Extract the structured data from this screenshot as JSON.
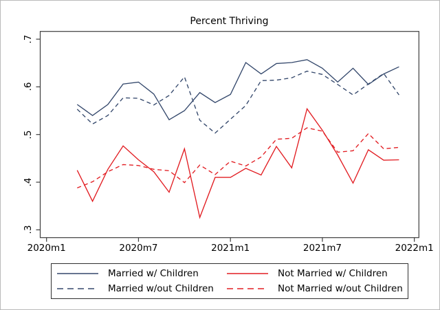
{
  "chart_data": {
    "type": "line",
    "title": "Percent Thriving",
    "x_unit": "month",
    "categories": [
      "2020m3",
      "2020m4",
      "2020m5",
      "2020m6",
      "2020m7",
      "2020m8",
      "2020m9",
      "2020m10",
      "2020m11",
      "2020m12",
      "2021m1",
      "2021m2",
      "2021m3",
      "2021m4",
      "2021m5",
      "2021m6",
      "2021m7",
      "2021m8",
      "2021m9",
      "2021m10",
      "2021m11",
      "2021m12"
    ],
    "series": [
      {
        "name": "Married w/ Children",
        "color": "#33476b",
        "style": "solid",
        "values": [
          0.563,
          0.54,
          0.563,
          0.606,
          0.61,
          0.585,
          0.531,
          0.55,
          0.588,
          0.567,
          0.584,
          0.651,
          0.627,
          0.649,
          0.651,
          0.657,
          0.639,
          0.61,
          0.639,
          0.605,
          0.627,
          0.642
        ]
      },
      {
        "name": "Married w/out Children",
        "color": "#33476b",
        "style": "dashed",
        "values": [
          0.553,
          0.522,
          0.54,
          0.577,
          0.576,
          0.562,
          0.582,
          0.621,
          0.53,
          0.503,
          0.532,
          0.561,
          0.613,
          0.614,
          0.619,
          0.633,
          0.626,
          0.605,
          0.583,
          0.606,
          0.628,
          0.583
        ]
      },
      {
        "name": "Not Married w/ Children",
        "color": "#e21d22",
        "style": "solid",
        "values": [
          0.425,
          0.36,
          0.427,
          0.476,
          0.447,
          0.422,
          0.379,
          0.47,
          0.326,
          0.41,
          0.41,
          0.429,
          0.415,
          0.475,
          0.43,
          0.554,
          0.509,
          0.457,
          0.398,
          0.468,
          0.446,
          0.447
        ]
      },
      {
        "name": "Not Married w/out Children",
        "color": "#e21d22",
        "style": "dashed",
        "values": [
          0.388,
          0.401,
          0.422,
          0.437,
          0.435,
          0.427,
          0.424,
          0.399,
          0.436,
          0.416,
          0.444,
          0.434,
          0.453,
          0.49,
          0.492,
          0.514,
          0.507,
          0.463,
          0.466,
          0.502,
          0.47,
          0.473
        ]
      }
    ],
    "x_axis": {
      "tick_labels": [
        "2020m1",
        "2020m7",
        "2021m1",
        "2021m7",
        "2022m1"
      ],
      "tick_month_indices": [
        0,
        6,
        12,
        18,
        24
      ]
    },
    "y_axis": {
      "tick_labels": [
        ".7",
        ".6",
        ".5",
        ".4",
        ".3"
      ],
      "tick_values": [
        0.7,
        0.6,
        0.5,
        0.4,
        0.3
      ]
    },
    "ylim": [
      0.3,
      0.7
    ],
    "grid": "off",
    "legend_position": "bottom",
    "axis_color": "#3d3d3d",
    "text_color": "#000000"
  }
}
